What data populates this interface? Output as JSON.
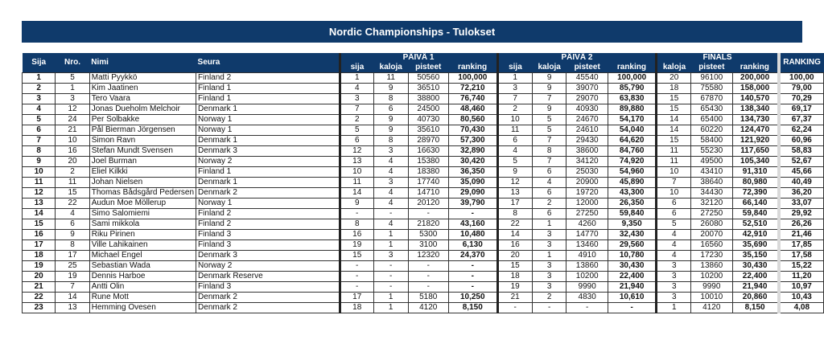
{
  "title": "Nordic Championships - Tulokset",
  "headers": {
    "sija": "Sija",
    "nro": "Nro.",
    "nimi": "Nimi",
    "seura": "Seura",
    "paiva1": "PÄIVÄ 1",
    "paiva2": "PÄIVÄ 2",
    "finals": "FINALS",
    "ranking": "RANKING",
    "sub_sija": "sija",
    "sub_kaloja": "kaloja",
    "sub_pisteet": "pisteet",
    "sub_ranking": "ranking"
  },
  "rows": [
    [
      "1",
      "5",
      "Matti Pyykkö",
      "Finland 2",
      "1",
      "11",
      "50560",
      "100,000",
      "1",
      "9",
      "45540",
      "100,000",
      "20",
      "96100",
      "200,000",
      "100,00"
    ],
    [
      "2",
      "1",
      "Kim Jaatinen",
      "Finland 1",
      "4",
      "9",
      "36510",
      "72,210",
      "3",
      "9",
      "39070",
      "85,790",
      "18",
      "75580",
      "158,000",
      "79,00"
    ],
    [
      "3",
      "3",
      "Tero Vaara",
      "Finland 1",
      "3",
      "8",
      "38800",
      "76,740",
      "7",
      "7",
      "29070",
      "63,830",
      "15",
      "67870",
      "140,570",
      "70,29"
    ],
    [
      "4",
      "12",
      "Jonas Dueholm Melchoir",
      "Denmark 1",
      "7",
      "6",
      "24500",
      "48,460",
      "2",
      "9",
      "40930",
      "89,880",
      "15",
      "65430",
      "138,340",
      "69,17"
    ],
    [
      "5",
      "24",
      "Per Solbakke",
      "Norway 1",
      "2",
      "9",
      "40730",
      "80,560",
      "10",
      "5",
      "24670",
      "54,170",
      "14",
      "65400",
      "134,730",
      "67,37"
    ],
    [
      "6",
      "21",
      "Pål Bierman Jörgensen",
      "Norway 1",
      "5",
      "9",
      "35610",
      "70,430",
      "11",
      "5",
      "24610",
      "54,040",
      "14",
      "60220",
      "124,470",
      "62,24"
    ],
    [
      "7",
      "10",
      "Simon Ravn",
      "Denmark 1",
      "6",
      "8",
      "28970",
      "57,300",
      "6",
      "7",
      "29430",
      "64,620",
      "15",
      "58400",
      "121,920",
      "60,96"
    ],
    [
      "8",
      "16",
      "Stefan Mundt Svensen",
      "Denmark 3",
      "12",
      "3",
      "16630",
      "32,890",
      "4",
      "8",
      "38600",
      "84,760",
      "11",
      "55230",
      "117,650",
      "58,83"
    ],
    [
      "9",
      "20",
      "Joel Burman",
      "Norway 2",
      "13",
      "4",
      "15380",
      "30,420",
      "5",
      "7",
      "34120",
      "74,920",
      "11",
      "49500",
      "105,340",
      "52,67"
    ],
    [
      "10",
      "2",
      "Eliel Kilkki",
      "Finland 1",
      "10",
      "4",
      "18380",
      "36,350",
      "9",
      "6",
      "25030",
      "54,960",
      "10",
      "43410",
      "91,310",
      "45,66"
    ],
    [
      "11",
      "11",
      "Johan Nielsen",
      "Denmark 1",
      "11",
      "3",
      "17740",
      "35,090",
      "12",
      "4",
      "20900",
      "45,890",
      "7",
      "38640",
      "80,980",
      "40,49"
    ],
    [
      "12",
      "15",
      "Thomas Bådsgård Pedersen",
      "Denmark 2",
      "14",
      "4",
      "14710",
      "29,090",
      "13",
      "6",
      "19720",
      "43,300",
      "10",
      "34430",
      "72,390",
      "36,20"
    ],
    [
      "13",
      "22",
      "Audun Moe Möllerup",
      "Norway 1",
      "9",
      "4",
      "20120",
      "39,790",
      "17",
      "2",
      "12000",
      "26,350",
      "6",
      "32120",
      "66,140",
      "33,07"
    ],
    [
      "14",
      "4",
      "Simo Salomiemi",
      "Finland 2",
      "-",
      "-",
      "-",
      "-",
      "8",
      "6",
      "27250",
      "59,840",
      "6",
      "27250",
      "59,840",
      "29,92"
    ],
    [
      "15",
      "6",
      "Sami mikkola",
      "Finland 2",
      "8",
      "4",
      "21820",
      "43,160",
      "22",
      "1",
      "4260",
      "9,350",
      "5",
      "26080",
      "52,510",
      "26,26"
    ],
    [
      "16",
      "9",
      "Riku Pirinen",
      "Finland 3",
      "16",
      "1",
      "5300",
      "10,480",
      "14",
      "3",
      "14770",
      "32,430",
      "4",
      "20070",
      "42,910",
      "21,46"
    ],
    [
      "17",
      "8",
      "Ville Lahikainen",
      "Finland 3",
      "19",
      "1",
      "3100",
      "6,130",
      "16",
      "3",
      "13460",
      "29,560",
      "4",
      "16560",
      "35,690",
      "17,85"
    ],
    [
      "18",
      "17",
      "Michael Engel",
      "Denmark 3",
      "15",
      "3",
      "12320",
      "24,370",
      "20",
      "1",
      "4910",
      "10,780",
      "4",
      "17230",
      "35,150",
      "17,58"
    ],
    [
      "19",
      "25",
      "Sebastian Wada",
      "Norway 2",
      "-",
      "-",
      "-",
      "-",
      "15",
      "3",
      "13860",
      "30,430",
      "3",
      "13860",
      "30,430",
      "15,22"
    ],
    [
      "20",
      "19",
      "Dennis Harboe",
      "Denmark Reserve",
      "-",
      "-",
      "-",
      "-",
      "18",
      "3",
      "10200",
      "22,400",
      "3",
      "10200",
      "22,400",
      "11,20"
    ],
    [
      "21",
      "7",
      "Antti Olin",
      "Finland 3",
      "-",
      "-",
      "-",
      "-",
      "19",
      "3",
      "9990",
      "21,940",
      "3",
      "9990",
      "21,940",
      "10,97"
    ],
    [
      "22",
      "14",
      "Rune Mott",
      "Denmark 2",
      "17",
      "1",
      "5180",
      "10,250",
      "21",
      "2",
      "4830",
      "10,610",
      "3",
      "10010",
      "20,860",
      "10,43"
    ],
    [
      "23",
      "13",
      "Hemming Ovesen",
      "Denmark 2",
      "18",
      "1",
      "4120",
      "8,150",
      "-",
      "-",
      "-",
      "-",
      "1",
      "4120",
      "8,150",
      "4,08"
    ]
  ]
}
